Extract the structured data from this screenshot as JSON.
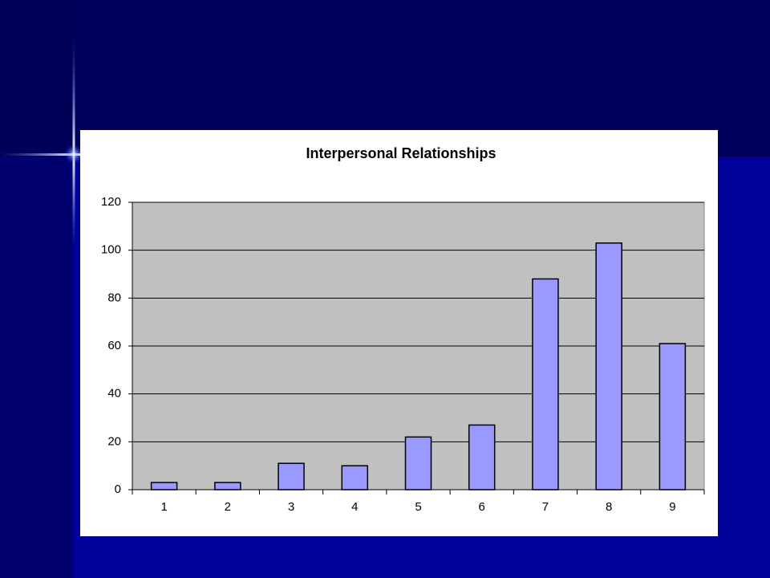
{
  "chart_data": {
    "type": "bar",
    "title": "Interpersonal Relationships",
    "categories": [
      "1",
      "2",
      "3",
      "4",
      "5",
      "6",
      "7",
      "8",
      "9"
    ],
    "values": [
      3,
      3,
      11,
      10,
      22,
      27,
      88,
      103,
      61
    ],
    "color": "#9999ff",
    "ylim": [
      0,
      120
    ],
    "yticks": [
      0,
      20,
      40,
      60,
      80,
      100,
      120
    ],
    "grid": true
  }
}
